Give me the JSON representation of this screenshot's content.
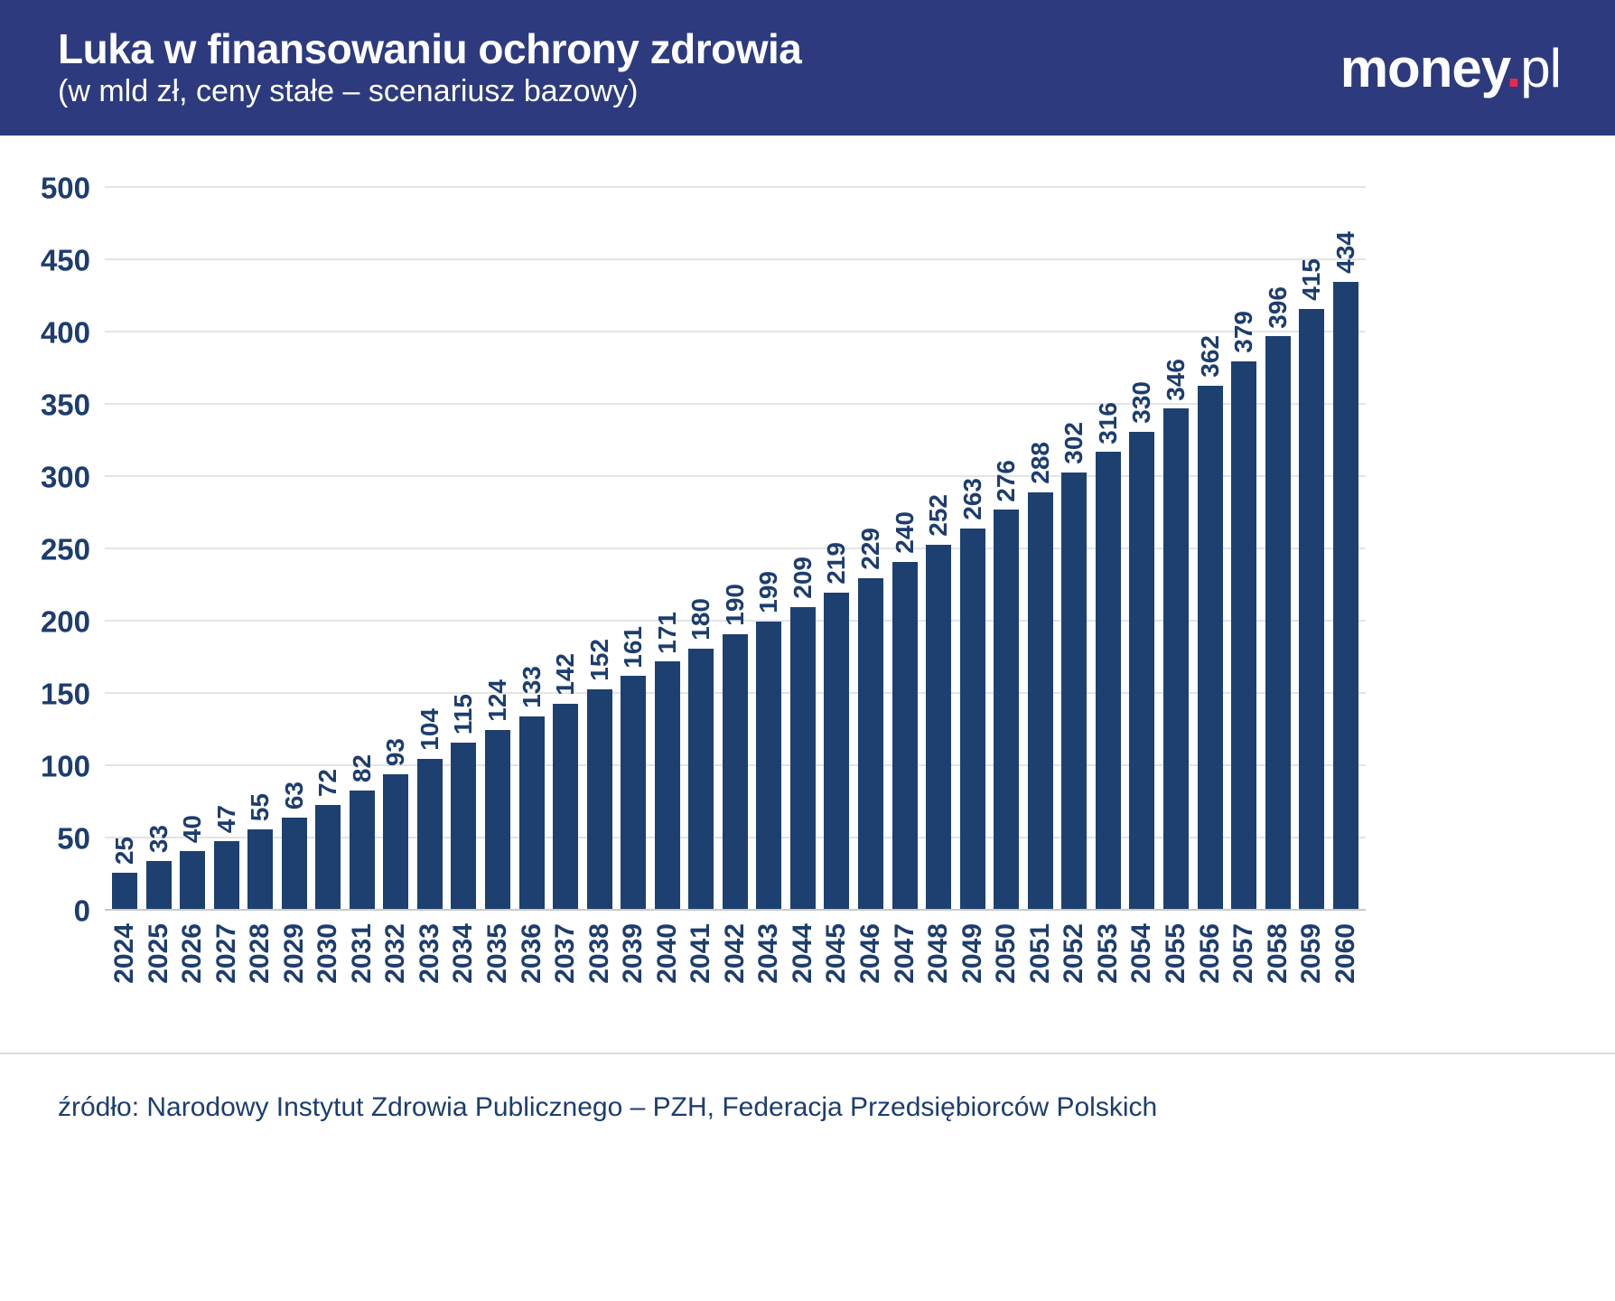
{
  "header": {
    "title": "Luka w finansowaniu ochrony zdrowia",
    "subtitle": "(w mld zł, ceny stałe – scenariusz bazowy)",
    "logo": {
      "money": "money",
      "dot": ".",
      "pl": "pl"
    },
    "background_color": "#2d3a7d",
    "accent_color": "#e62a4e"
  },
  "chart_data": {
    "type": "bar",
    "title": "Luka w finansowaniu ochrony zdrowia",
    "subtitle": "(w mld zł, ceny stałe – scenariusz bazowy)",
    "categories": [
      "2024",
      "2025",
      "2026",
      "2027",
      "2028",
      "2029",
      "2030",
      "2031",
      "2032",
      "2033",
      "2034",
      "2035",
      "2036",
      "2037",
      "2038",
      "2039",
      "2040",
      "2041",
      "2042",
      "2043",
      "2044",
      "2045",
      "2046",
      "2047",
      "2048",
      "2049",
      "2050",
      "2051",
      "2052",
      "2053",
      "2054",
      "2055",
      "2056",
      "2057",
      "2058",
      "2059",
      "2060"
    ],
    "values": [
      25,
      33,
      40,
      47,
      55,
      63,
      72,
      82,
      93,
      104,
      115,
      124,
      133,
      142,
      152,
      161,
      171,
      180,
      190,
      199,
      209,
      219,
      229,
      240,
      252,
      263,
      276,
      288,
      302,
      316,
      330,
      346,
      362,
      379,
      396,
      415,
      434
    ],
    "xlabel": "",
    "ylabel": "",
    "ylim": [
      0,
      500
    ],
    "ytick_interval": 50,
    "yticks": [
      0,
      50,
      100,
      150,
      200,
      250,
      300,
      350,
      400,
      450,
      500
    ],
    "grid": true,
    "legend": false,
    "bar_color": "#1d4070",
    "label_color": "#1d3d6e",
    "value_labels_rotated": true,
    "x_labels_rotated": true
  },
  "footer": {
    "source": "źródło: Narodowy Instytut Zdrowia Publicznego – PZH, Federacja Przedsiębiorców Polskich"
  }
}
